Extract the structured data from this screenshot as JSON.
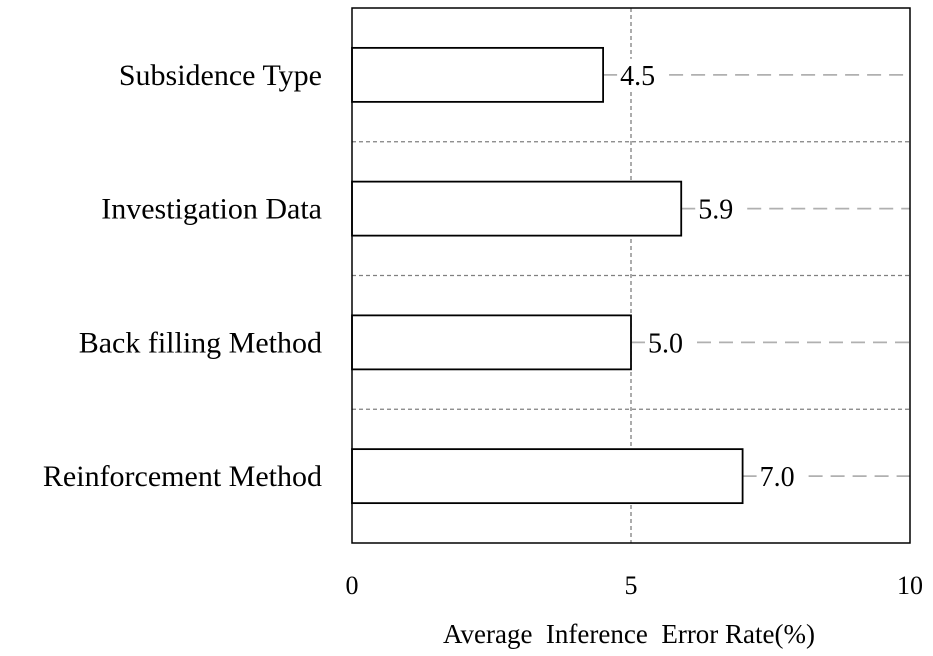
{
  "chart_data": {
    "type": "bar",
    "orientation": "horizontal",
    "categories": [
      "Subsidence Type",
      "Investigation Data",
      "Back filling Method",
      "Reinforcement Method"
    ],
    "values": [
      4.5,
      5.9,
      5.0,
      7.0
    ],
    "value_labels": [
      "4.5",
      "5.9",
      "5.0",
      "7.0"
    ],
    "xlabel": "Average  Inference  Error Rate(%)",
    "ylabel": "",
    "xlim": [
      0,
      10
    ],
    "xticks": [
      0,
      5,
      10
    ],
    "xtick_labels": [
      "0",
      "5",
      "10"
    ],
    "grid": true,
    "colors": {
      "bar_fill": "#ffffff",
      "bar_stroke": "#000000",
      "grid": "#808080",
      "leader": "#b0b0b0"
    }
  }
}
